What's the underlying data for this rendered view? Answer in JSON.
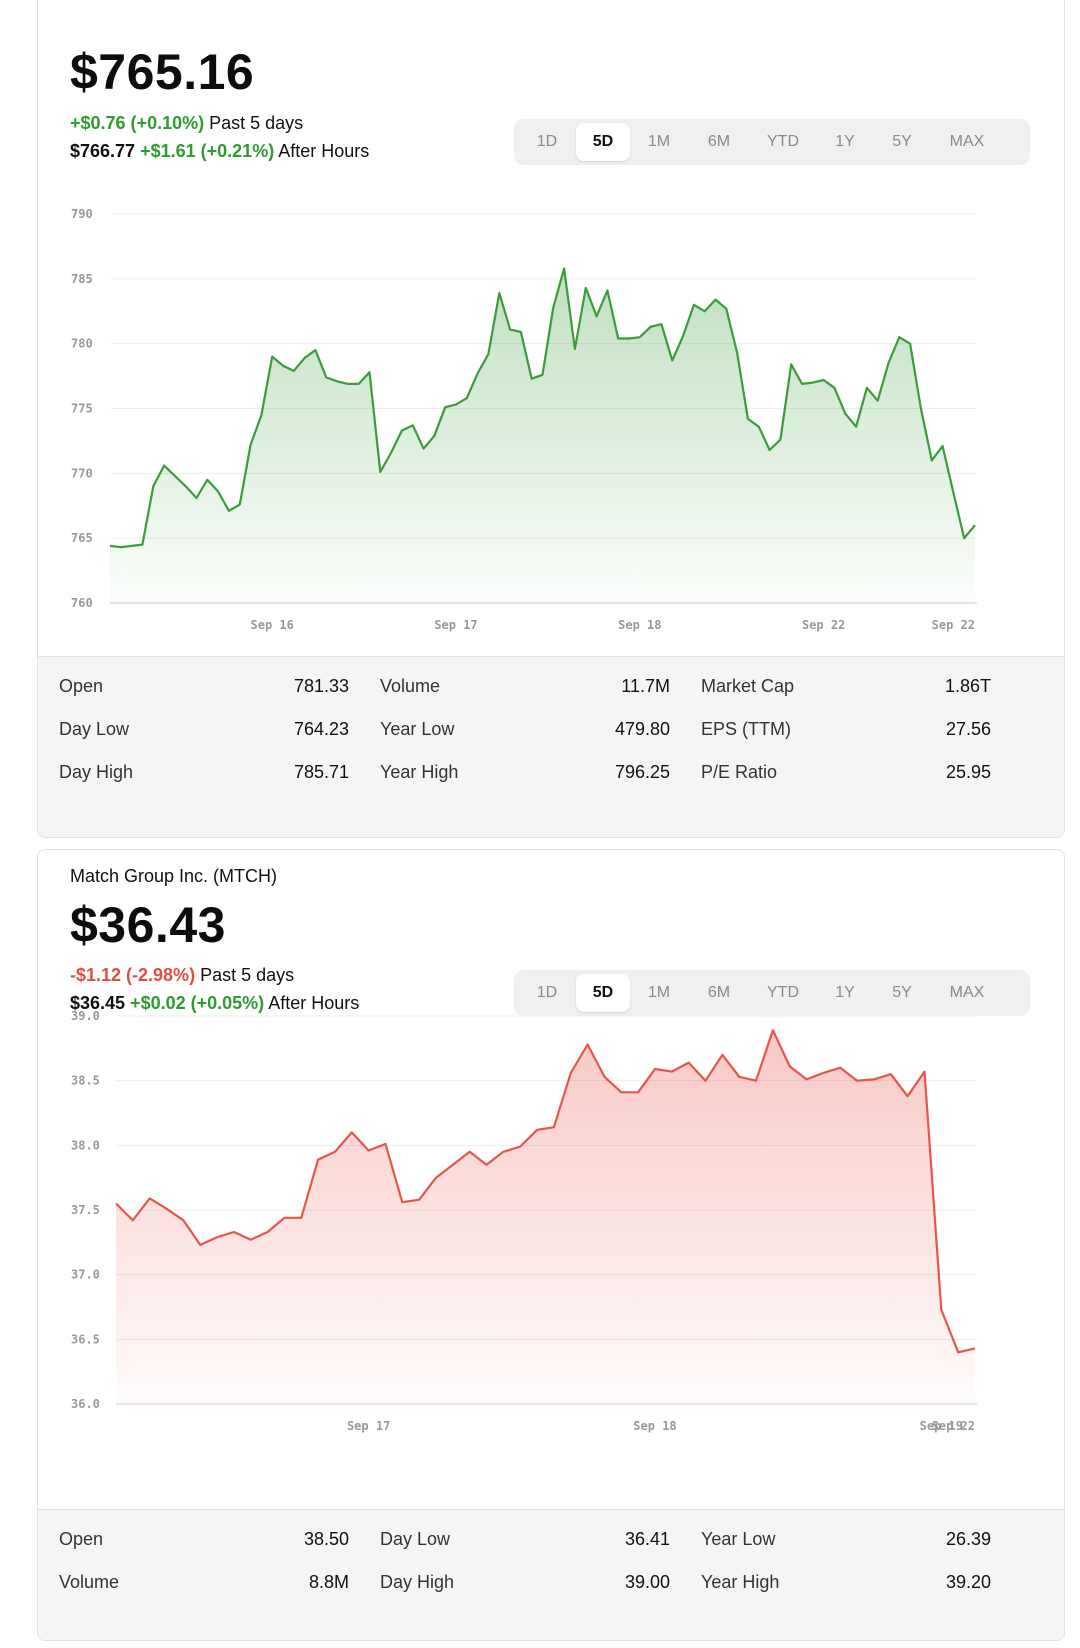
{
  "card1": {
    "price": "$765.16",
    "change": "+$0.76 (+0.10%)",
    "change_caption": "Past 5 days",
    "after_hours_price": "$766.77",
    "after_hours_change": "+$1.61 (+0.21%)",
    "after_hours_caption": "After Hours",
    "ranges": [
      "1D",
      "5D",
      "1M",
      "6M",
      "YTD",
      "1Y",
      "5Y",
      "MAX"
    ],
    "active_range": "5D",
    "stats": [
      [
        {
          "label": "Open",
          "value": "781.33"
        },
        {
          "label": "Volume",
          "value": "11.7M"
        },
        {
          "label": "Market Cap",
          "value": "1.86T"
        }
      ],
      [
        {
          "label": "Day Low",
          "value": "764.23"
        },
        {
          "label": "Year Low",
          "value": "479.80"
        },
        {
          "label": "EPS (TTM)",
          "value": "27.56"
        }
      ],
      [
        {
          "label": "Day High",
          "value": "785.71"
        },
        {
          "label": "Year High",
          "value": "796.25"
        },
        {
          "label": "P/E Ratio",
          "value": "25.95"
        }
      ]
    ]
  },
  "card2": {
    "name": "Match Group Inc. (MTCH)",
    "price": "$36.43",
    "change": "-$1.12 (-2.98%)",
    "change_caption": "Past 5 days",
    "after_hours_price": "$36.45",
    "after_hours_change": "+$0.02 (+0.05%)",
    "after_hours_caption": "After Hours",
    "ranges": [
      "1D",
      "5D",
      "1M",
      "6M",
      "YTD",
      "1Y",
      "5Y",
      "MAX"
    ],
    "active_range": "5D",
    "stats": [
      [
        {
          "label": "Open",
          "value": "38.50"
        },
        {
          "label": "Day Low",
          "value": "36.41"
        },
        {
          "label": "Year Low",
          "value": "26.39"
        }
      ],
      [
        {
          "label": "Volume",
          "value": "8.8M"
        },
        {
          "label": "Day High",
          "value": "39.00"
        },
        {
          "label": "Year High",
          "value": "39.20"
        }
      ]
    ]
  },
  "colors": {
    "up": "#2e9c2e",
    "down": "#e04f43",
    "range_bg": "#f0f0f0",
    "stats_bg": "#f5f5f5"
  },
  "chart_data": [
    {
      "type": "area",
      "color": "#3a9c3a",
      "ylim": [
        760,
        790
      ],
      "yticks": [
        "790",
        "785",
        "780",
        "775",
        "770",
        "765",
        "760"
      ],
      "xticks": [
        {
          "label": "Sep 16",
          "index": 15
        },
        {
          "label": "Sep 17",
          "index": 32
        },
        {
          "label": "Sep 18",
          "index": 49
        },
        {
          "label": "Sep 22",
          "index": 66
        },
        {
          "label": "Sep 22",
          "index": 78
        }
      ],
      "grid": true,
      "values": [
        764.4,
        764.3,
        764.4,
        764.5,
        769.0,
        770.6,
        769.8,
        769.0,
        768.1,
        769.5,
        768.6,
        767.1,
        767.6,
        772.2,
        774.5,
        779.0,
        778.3,
        777.9,
        778.9,
        779.5,
        777.4,
        777.1,
        776.9,
        776.9,
        777.8,
        770.1,
        771.6,
        773.3,
        773.7,
        771.9,
        772.9,
        775.1,
        775.3,
        775.8,
        777.7,
        779.2,
        783.9,
        781.1,
        780.9,
        777.3,
        777.6,
        782.8,
        785.8,
        779.6,
        784.3,
        782.1,
        784.1,
        780.4,
        780.4,
        780.5,
        781.3,
        781.5,
        778.7,
        780.6,
        783.0,
        782.5,
        783.4,
        782.7,
        779.3,
        774.2,
        773.6,
        771.8,
        772.6,
        778.4,
        776.9,
        777.0,
        777.2,
        776.6,
        774.6,
        773.6,
        776.6,
        775.6,
        778.5,
        780.5,
        780.0,
        775.0,
        771.0,
        772.1,
        768.5,
        765.0,
        766.0
      ]
    },
    {
      "type": "area",
      "color": "#e8554a",
      "ylim": [
        36.0,
        39.0
      ],
      "yticks": [
        "39.0",
        "38.5",
        "38.0",
        "37.5",
        "37.0",
        "36.5",
        "36.0"
      ],
      "xticks": [
        {
          "label": "Sep 17",
          "index": 15
        },
        {
          "label": "Sep 18",
          "index": 32
        },
        {
          "label": "Sep 19",
          "index": 49
        },
        {
          "label": "Sep 22",
          "index": 66
        },
        {
          "label": "Sep 22",
          "index": 77
        }
      ],
      "grid": true,
      "values": [
        37.55,
        37.42,
        37.59,
        37.51,
        37.42,
        37.23,
        37.29,
        37.33,
        37.27,
        37.33,
        37.44,
        37.44,
        37.89,
        37.95,
        38.1,
        37.96,
        38.01,
        37.56,
        37.58,
        37.75,
        37.85,
        37.95,
        37.85,
        37.95,
        37.99,
        38.12,
        38.14,
        38.56,
        38.78,
        38.53,
        38.41,
        38.41,
        38.59,
        38.57,
        38.64,
        38.5,
        38.7,
        38.53,
        38.5,
        38.89,
        38.61,
        38.51,
        38.56,
        38.6,
        38.5,
        38.51,
        38.55,
        38.38,
        38.57,
        36.73,
        36.4,
        36.43
      ]
    }
  ]
}
